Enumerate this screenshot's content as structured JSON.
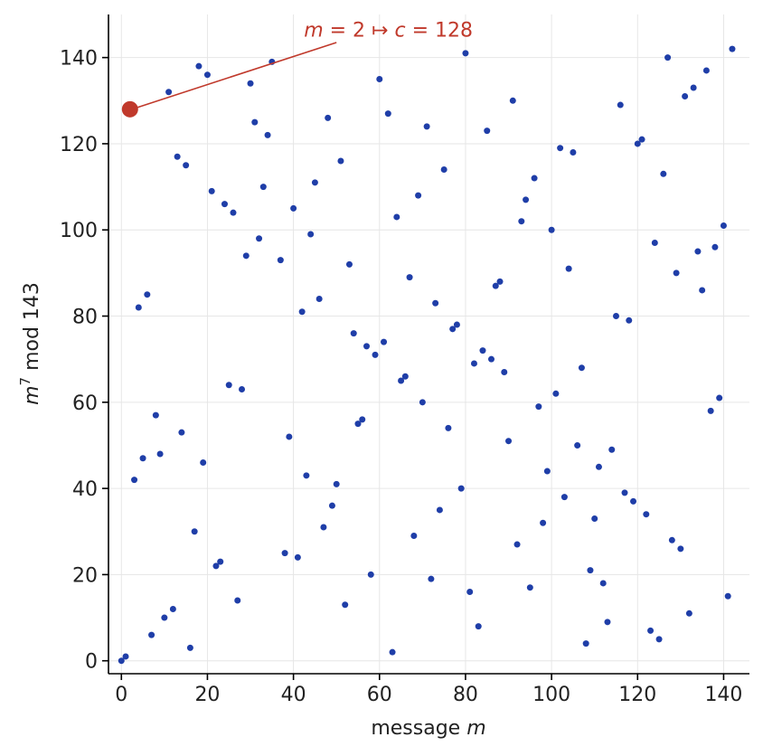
{
  "chart_data": {
    "type": "scatter",
    "xlabel": "message",
    "xlabel_var": "m",
    "ylabel": "m^7 mod 143",
    "ylabel_base": "m",
    "ylabel_sup": "7",
    "ylabel_rest": " mod 143",
    "xlim": [
      -3,
      146
    ],
    "ylim": [
      -3,
      150
    ],
    "xticks": [
      0,
      20,
      40,
      60,
      80,
      100,
      120,
      140
    ],
    "yticks": [
      0,
      20,
      40,
      60,
      80,
      100,
      120,
      140
    ],
    "grid": true,
    "point_color": "#1f3ea8",
    "highlight_color": "#c0392b",
    "annotation": {
      "text_m": "m",
      "text_eq1": " = 2 ",
      "text_arrow": "↦",
      "text_c": " c",
      "text_eq2": " = 128",
      "point": [
        2,
        128
      ],
      "text_at": [
        40,
        147
      ]
    },
    "points": [
      [
        0,
        0
      ],
      [
        1,
        1
      ],
      [
        2,
        128
      ],
      [
        3,
        42
      ],
      [
        4,
        82
      ],
      [
        5,
        47
      ],
      [
        6,
        85
      ],
      [
        7,
        6
      ],
      [
        8,
        57
      ],
      [
        9,
        48
      ],
      [
        10,
        10
      ],
      [
        11,
        132
      ],
      [
        12,
        12
      ],
      [
        13,
        117
      ],
      [
        14,
        53
      ],
      [
        15,
        115
      ],
      [
        16,
        3
      ],
      [
        17,
        30
      ],
      [
        18,
        138
      ],
      [
        19,
        46
      ],
      [
        20,
        136
      ],
      [
        21,
        109
      ],
      [
        22,
        22
      ],
      [
        23,
        23
      ],
      [
        24,
        106
      ],
      [
        25,
        64
      ],
      [
        26,
        104
      ],
      [
        27,
        14
      ],
      [
        28,
        63
      ],
      [
        29,
        94
      ],
      [
        30,
        134
      ],
      [
        31,
        125
      ],
      [
        32,
        98
      ],
      [
        33,
        110
      ],
      [
        34,
        122
      ],
      [
        35,
        139
      ],
      [
        37,
        93
      ],
      [
        38,
        25
      ],
      [
        39,
        52
      ],
      [
        40,
        105
      ],
      [
        41,
        24
      ],
      [
        42,
        81
      ],
      [
        43,
        43
      ],
      [
        44,
        99
      ],
      [
        45,
        111
      ],
      [
        46,
        84
      ],
      [
        47,
        31
      ],
      [
        48,
        126
      ],
      [
        49,
        36
      ],
      [
        50,
        41
      ],
      [
        51,
        116
      ],
      [
        52,
        13
      ],
      [
        53,
        92
      ],
      [
        54,
        76
      ],
      [
        55,
        55
      ],
      [
        56,
        56
      ],
      [
        57,
        73
      ],
      [
        58,
        20
      ],
      [
        59,
        71
      ],
      [
        60,
        135
      ],
      [
        61,
        74
      ],
      [
        62,
        127
      ],
      [
        63,
        2
      ],
      [
        64,
        103
      ],
      [
        65,
        65
      ],
      [
        66,
        66
      ],
      [
        67,
        89
      ],
      [
        68,
        29
      ],
      [
        69,
        108
      ],
      [
        70,
        60
      ],
      [
        71,
        124
      ],
      [
        72,
        19
      ],
      [
        73,
        83
      ],
      [
        74,
        35
      ],
      [
        75,
        114
      ],
      [
        76,
        54
      ],
      [
        77,
        77
      ],
      [
        78,
        78
      ],
      [
        79,
        40
      ],
      [
        80,
        141
      ],
      [
        81,
        16
      ],
      [
        82,
        69
      ],
      [
        83,
        8
      ],
      [
        84,
        72
      ],
      [
        85,
        123
      ],
      [
        86,
        70
      ],
      [
        87,
        87
      ],
      [
        88,
        88
      ],
      [
        89,
        67
      ],
      [
        90,
        51
      ],
      [
        91,
        130
      ],
      [
        92,
        27
      ],
      [
        93,
        102
      ],
      [
        94,
        107
      ],
      [
        95,
        17
      ],
      [
        96,
        112
      ],
      [
        97,
        59
      ],
      [
        98,
        32
      ],
      [
        99,
        44
      ],
      [
        100,
        100
      ],
      [
        101,
        62
      ],
      [
        102,
        119
      ],
      [
        103,
        38
      ],
      [
        104,
        91
      ],
      [
        105,
        118
      ],
      [
        106,
        50
      ],
      [
        107,
        68
      ],
      [
        108,
        4
      ],
      [
        109,
        21
      ],
      [
        110,
        33
      ],
      [
        111,
        45
      ],
      [
        112,
        18
      ],
      [
        113,
        9
      ],
      [
        114,
        49
      ],
      [
        115,
        80
      ],
      [
        116,
        129
      ],
      [
        117,
        39
      ],
      [
        118,
        79
      ],
      [
        119,
        37
      ],
      [
        120,
        120
      ],
      [
        121,
        121
      ],
      [
        122,
        34
      ],
      [
        123,
        7
      ],
      [
        124,
        97
      ],
      [
        125,
        5
      ],
      [
        126,
        113
      ],
      [
        127,
        140
      ],
      [
        128,
        28
      ],
      [
        129,
        90
      ],
      [
        130,
        26
      ],
      [
        131,
        131
      ],
      [
        132,
        11
      ],
      [
        133,
        133
      ],
      [
        134,
        95
      ],
      [
        135,
        86
      ],
      [
        136,
        137
      ],
      [
        137,
        58
      ],
      [
        138,
        96
      ],
      [
        139,
        61
      ],
      [
        140,
        101
      ],
      [
        141,
        15
      ],
      [
        142,
        142
      ]
    ]
  }
}
